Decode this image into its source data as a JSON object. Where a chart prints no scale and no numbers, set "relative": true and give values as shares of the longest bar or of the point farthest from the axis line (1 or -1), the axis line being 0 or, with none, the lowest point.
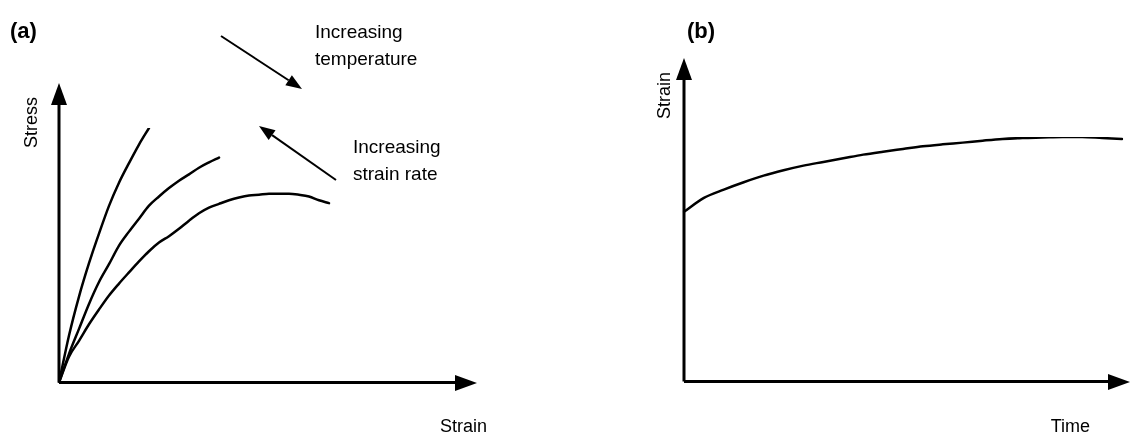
{
  "chart_data": [
    {
      "type": "line",
      "title": "(a)",
      "xlabel": "Strain",
      "ylabel": "Stress",
      "annotations": [
        "Increasing temperature",
        "Increasing strain rate"
      ],
      "relative": true,
      "grid": false,
      "legend": false,
      "marker": "none",
      "categories": [
        null,
        null,
        null,
        null,
        null,
        null,
        null,
        null,
        null,
        null,
        null,
        null,
        null,
        null,
        null,
        null,
        null,
        null,
        null,
        null,
        null,
        null,
        null,
        null,
        null,
        null,
        null,
        null,
        null,
        null,
        null,
        null,
        null,
        null,
        null,
        null,
        null,
        null,
        null,
        null,
        null,
        null
      ],
      "series": [
        {
          "color": "#000000",
          "values": [
            0,
            0.185,
            0.338,
            0.469,
            0.585,
            0.694,
            0.785,
            0.862,
            0.935,
            1.0,
            null,
            null,
            null,
            null,
            null,
            null,
            null,
            null,
            null,
            null,
            null,
            null,
            null,
            null,
            null,
            null,
            null,
            null,
            null,
            null,
            null,
            null,
            null,
            null,
            null,
            null,
            null,
            null,
            null,
            null,
            null,
            null
          ]
        },
        {
          "color": "#000000",
          "values": [
            0,
            0.113,
            0.211,
            0.309,
            0.395,
            0.465,
            0.538,
            0.593,
            0.644,
            0.695,
            0.731,
            0.764,
            0.793,
            0.818,
            0.844,
            0.865,
            0.884,
            null,
            null,
            null,
            null,
            null,
            null,
            null,
            null,
            null,
            null,
            null,
            null,
            null,
            null,
            null,
            null,
            null,
            null,
            null,
            null,
            null,
            null,
            null,
            null,
            null
          ]
        },
        {
          "color": "#000000",
          "values": [
            0,
            0.102,
            0.164,
            0.229,
            0.287,
            0.342,
            0.389,
            0.433,
            0.476,
            0.516,
            0.55,
            0.575,
            0.604,
            0.636,
            0.665,
            0.687,
            0.702,
            0.716,
            0.727,
            0.735,
            0.738,
            0.742,
            0.742,
            0.742,
            0.738,
            0.731,
            0.716,
            0.705,
            null,
            null,
            null,
            null,
            null,
            null,
            null,
            null,
            null,
            null,
            null,
            null,
            null,
            null
          ]
        }
      ]
    },
    {
      "type": "line",
      "title": "(b)",
      "xlabel": "Time",
      "ylabel": "Strain",
      "relative": true,
      "grid": false,
      "legend": false,
      "marker": "none",
      "categories": [
        null,
        null,
        null,
        null,
        null,
        null,
        null,
        null,
        null,
        null,
        null,
        null,
        null,
        null,
        null,
        null,
        null,
        null,
        null,
        null,
        null,
        null,
        null
      ],
      "series": [
        {
          "color": "#000000",
          "values": [
            0.694,
            0.751,
            0.785,
            0.815,
            0.842,
            0.864,
            0.883,
            0.898,
            0.913,
            0.928,
            0.94,
            0.951,
            0.962,
            0.97,
            0.977,
            0.985,
            0.992,
            0.996,
            0.998,
            1,
            1,
            0.996,
            0.992
          ]
        }
      ]
    }
  ]
}
